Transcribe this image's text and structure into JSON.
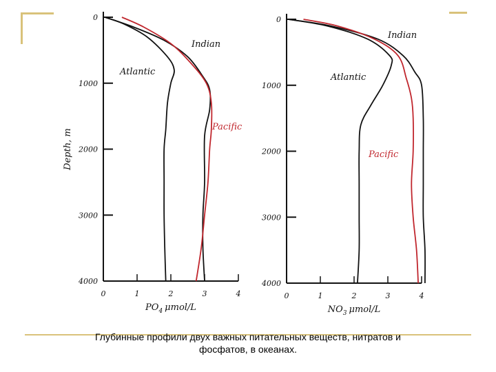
{
  "caption": {
    "line1": "Глубинные профили двух важных питательных веществ, нитратов и",
    "line2": "фосфатов, в океанах."
  },
  "colors": {
    "axis": "#111111",
    "atlantic": "#111111",
    "indian": "#111111",
    "pacific": "#c0262d",
    "accent": "#d9c27a"
  },
  "chart_data": [
    {
      "type": "line",
      "ylabel": "Depth, m",
      "xlabel_main": "PO",
      "xlabel_sub": "4",
      "xlabel_unit": "μmol/L",
      "xlim": [
        0,
        4
      ],
      "ylim": [
        0,
        4000
      ],
      "y_inverted": true,
      "x_ticks": [
        "0",
        "1",
        "2",
        "3",
        "4"
      ],
      "y_ticks": [
        "0",
        "1000",
        "2000",
        "3000",
        "4000"
      ],
      "series": [
        {
          "name": "Atlantic",
          "color": "#111111",
          "points": [
            [
              0.05,
              0
            ],
            [
              0.6,
              100
            ],
            [
              1.3,
              300
            ],
            [
              1.9,
              600
            ],
            [
              2.1,
              800
            ],
            [
              2.0,
              1000
            ],
            [
              1.9,
              1300
            ],
            [
              1.85,
              1700
            ],
            [
              1.8,
              2000
            ],
            [
              1.8,
              2500
            ],
            [
              1.8,
              3000
            ],
            [
              1.82,
              3500
            ],
            [
              1.85,
              4000
            ]
          ]
        },
        {
          "name": "Indian",
          "color": "#111111",
          "points": [
            [
              0.05,
              0
            ],
            [
              0.9,
              150
            ],
            [
              1.8,
              350
            ],
            [
              2.5,
              600
            ],
            [
              2.95,
              900
            ],
            [
              3.15,
              1100
            ],
            [
              3.15,
              1400
            ],
            [
              3.0,
              1800
            ],
            [
              3.0,
              2500
            ],
            [
              2.95,
              3000
            ],
            [
              2.95,
              3500
            ],
            [
              3.0,
              4000
            ]
          ]
        },
        {
          "name": "Pacific",
          "color": "#c0262d",
          "points": [
            [
              0.55,
              0
            ],
            [
              1.2,
              150
            ],
            [
              2.0,
              400
            ],
            [
              2.6,
              700
            ],
            [
              3.05,
              1000
            ],
            [
              3.2,
              1300
            ],
            [
              3.2,
              1700
            ],
            [
              3.15,
              2000
            ],
            [
              3.1,
              2500
            ],
            [
              3.0,
              3000
            ],
            [
              2.9,
              3500
            ],
            [
              2.75,
              4000
            ]
          ]
        }
      ]
    },
    {
      "type": "line",
      "ylabel": "",
      "xlabel_main": "NO",
      "xlabel_sub": "3",
      "xlabel_unit": "μmol/L",
      "xlim": [
        0,
        4
      ],
      "ylim": [
        0,
        4000
      ],
      "y_inverted": true,
      "x_ticks": [
        "0",
        "1",
        "2",
        "3",
        "4"
      ],
      "y_ticks": [
        "0",
        "1000",
        "2000",
        "3000",
        "4000"
      ],
      "series": [
        {
          "name": "Atlantic",
          "color": "#111111",
          "points": [
            [
              0.05,
              0
            ],
            [
              1.2,
              100
            ],
            [
              2.4,
              300
            ],
            [
              3.05,
              550
            ],
            [
              3.1,
              700
            ],
            [
              2.85,
              1000
            ],
            [
              2.5,
              1300
            ],
            [
              2.2,
              1600
            ],
            [
              2.15,
              2000
            ],
            [
              2.15,
              2500
            ],
            [
              2.15,
              3000
            ],
            [
              2.15,
              3500
            ],
            [
              2.1,
              4000
            ]
          ]
        },
        {
          "name": "Indian",
          "color": "#111111",
          "points": [
            [
              0.05,
              0
            ],
            [
              1.3,
              100
            ],
            [
              2.7,
              300
            ],
            [
              3.45,
              550
            ],
            [
              3.8,
              800
            ],
            [
              4.0,
              1000
            ],
            [
              4.05,
              1500
            ],
            [
              4.05,
              2000
            ],
            [
              4.05,
              2500
            ],
            [
              4.05,
              3000
            ],
            [
              4.1,
              3500
            ],
            [
              4.1,
              4000
            ]
          ]
        },
        {
          "name": "Pacific",
          "color": "#c0262d",
          "points": [
            [
              0.5,
              0
            ],
            [
              1.5,
              100
            ],
            [
              2.6,
              300
            ],
            [
              3.3,
              550
            ],
            [
              3.55,
              900
            ],
            [
              3.7,
              1200
            ],
            [
              3.75,
              1500
            ],
            [
              3.75,
              2000
            ],
            [
              3.7,
              2500
            ],
            [
              3.75,
              3000
            ],
            [
              3.85,
              3500
            ],
            [
              3.9,
              4000
            ]
          ]
        }
      ]
    }
  ]
}
